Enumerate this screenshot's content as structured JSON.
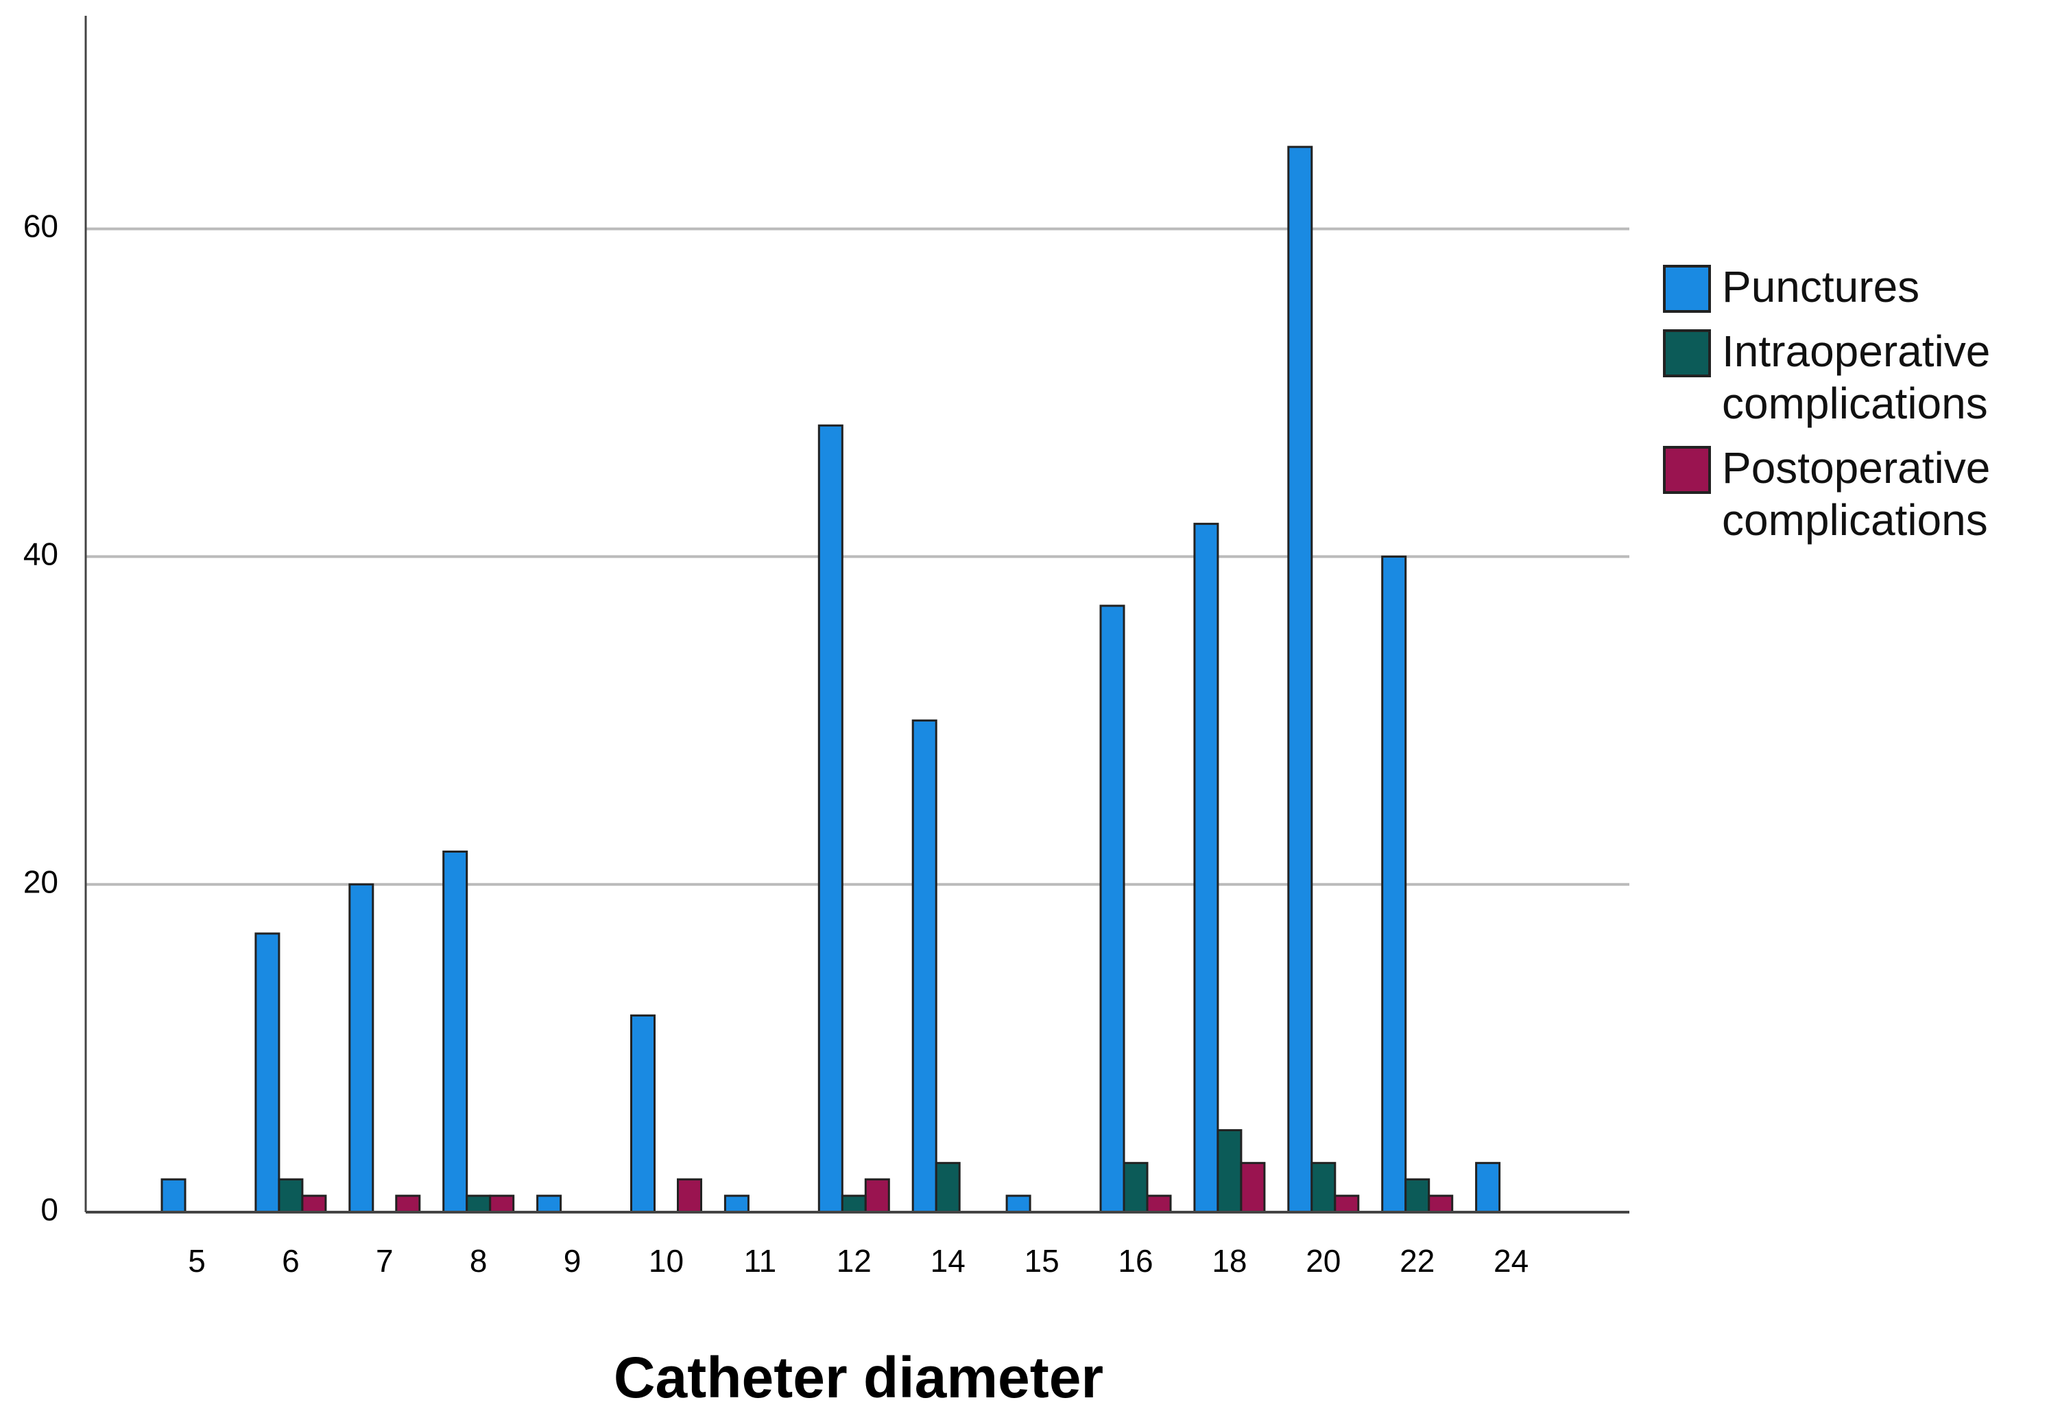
{
  "chart_data": {
    "type": "bar",
    "x_label": "Catheter diameter",
    "categories": [
      "5",
      "6",
      "7",
      "8",
      "9",
      "10",
      "11",
      "12",
      "14",
      "15",
      "16",
      "18",
      "20",
      "22",
      "24"
    ],
    "series": [
      {
        "name": "Punctures",
        "color": "#1a8ae2",
        "values": [
          2,
          17,
          20,
          22,
          1,
          12,
          1,
          48,
          30,
          1,
          37,
          42,
          65,
          40,
          3
        ]
      },
      {
        "name": "Intraoperative complications",
        "color": "#0c5b58",
        "values": [
          0,
          2,
          0,
          1,
          0,
          0,
          0,
          1,
          3,
          0,
          3,
          5,
          3,
          2,
          0
        ]
      },
      {
        "name": "Postoperative complications",
        "color": "#9a1450",
        "values": [
          0,
          1,
          1,
          1,
          0,
          2,
          0,
          2,
          0,
          0,
          1,
          3,
          1,
          1,
          0
        ]
      }
    ],
    "ylim": [
      0,
      73
    ],
    "yticks": [
      0,
      20,
      40,
      60
    ],
    "grid": true,
    "legend": "right"
  }
}
